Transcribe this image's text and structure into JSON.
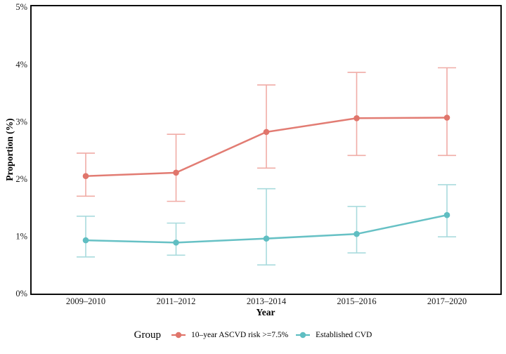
{
  "chart_data": {
    "type": "line",
    "title": "",
    "xlabel": "Year",
    "ylabel": "Proportion (%)",
    "categories": [
      "2009–2010",
      "2011–2012",
      "2013–2014",
      "2015–2016",
      "2017–2020"
    ],
    "ylim": [
      0,
      5
    ],
    "yticks": [
      0,
      1,
      2,
      3,
      4,
      5
    ],
    "ytick_labels": [
      "0%",
      "1%",
      "2%",
      "3%",
      "4%",
      "5%"
    ],
    "grid": false,
    "legend_position": "bottom",
    "legend_title": "Group",
    "panel_border_color": "#000000",
    "series": [
      {
        "name": "10–year ASCVD risk >=7.5%",
        "color": "#E0756B",
        "errorbar_color": "#F0ACA6",
        "values": [
          2.05,
          2.11,
          2.82,
          3.06,
          3.07
        ],
        "ci_low": [
          1.7,
          1.61,
          2.19,
          2.41,
          2.41
        ],
        "ci_high": [
          2.45,
          2.78,
          3.64,
          3.86,
          3.94
        ]
      },
      {
        "name": "Established CVD",
        "color": "#5FBEC2",
        "errorbar_color": "#A9DBDD",
        "values": [
          0.93,
          0.89,
          0.96,
          1.04,
          1.37
        ],
        "ci_low": [
          0.64,
          0.67,
          0.5,
          0.71,
          0.99
        ],
        "ci_high": [
          1.35,
          1.23,
          1.83,
          1.52,
          1.9
        ]
      }
    ]
  }
}
